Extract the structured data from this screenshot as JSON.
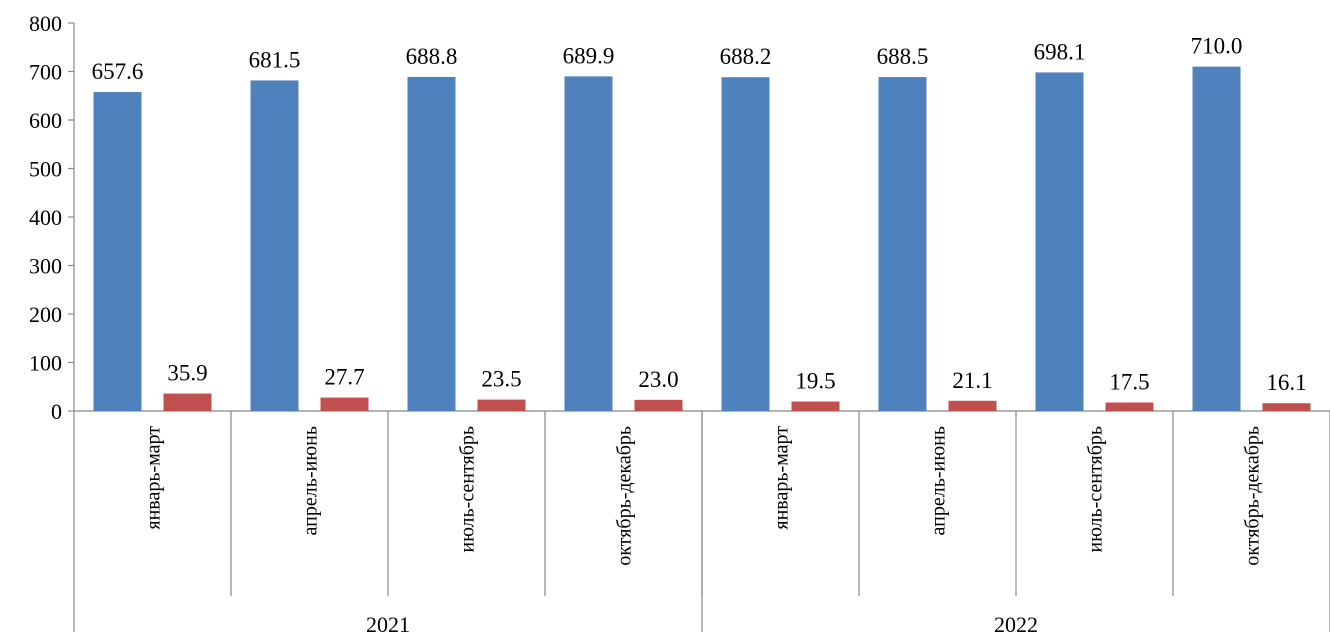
{
  "colors": {
    "series_1": "#4F81BD",
    "series_2": "#C0504D"
  },
  "chart_data": {
    "type": "bar",
    "title": "",
    "xlabel": "",
    "ylabel": "",
    "ylim": [
      0,
      800
    ],
    "yticks": [
      0,
      100,
      200,
      300,
      400,
      500,
      600,
      700,
      800
    ],
    "grid": false,
    "legend": "none",
    "categories": [
      "январь-март",
      "апрель-июнь",
      "июль-сентябрь",
      "октябрь-декабрь",
      "январь-март",
      "апрель-июнь",
      "июль-сентябрь",
      "октябрь-декабрь"
    ],
    "groups": [
      {
        "label": "2021",
        "count": 4
      },
      {
        "label": "2022",
        "count": 4
      }
    ],
    "series": [
      {
        "values": [
          657.6,
          681.5,
          688.8,
          689.9,
          688.2,
          688.5,
          698.1,
          710.0
        ],
        "labels": [
          "657.6",
          "681.5",
          "688.8",
          "689.9",
          "688.2",
          "688.5",
          "698.1",
          "710.0"
        ]
      },
      {
        "values": [
          35.9,
          27.7,
          23.5,
          23.0,
          19.5,
          21.1,
          17.5,
          16.1
        ],
        "labels": [
          "35.9",
          "27.7",
          "23.5",
          "23.0",
          "19.5",
          "21.1",
          "17.5",
          "16.1"
        ]
      }
    ]
  }
}
